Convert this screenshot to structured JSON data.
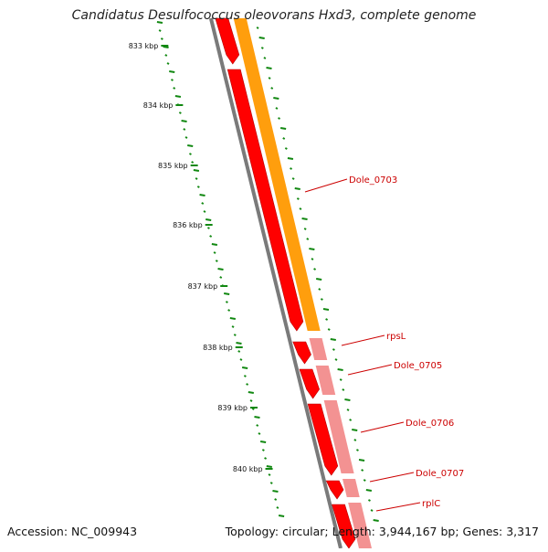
{
  "title": "Candidatus Desulfococcus oleovorans Hxd3, complete genome",
  "footer": {
    "accession": "Accession: NC_009943",
    "summary": "Topology: circular; Length: 3,944,167 bp; Genes: 3,317"
  },
  "ticks": [
    {
      "label": "833 kbp",
      "kbp": 833
    },
    {
      "label": "834 kbp",
      "kbp": 834
    },
    {
      "label": "835 kbp",
      "kbp": 835
    },
    {
      "label": "836 kbp",
      "kbp": 836
    },
    {
      "label": "837 kbp",
      "kbp": 837
    },
    {
      "label": "838 kbp",
      "kbp": 838
    },
    {
      "label": "839 kbp",
      "kbp": 839
    },
    {
      "label": "840 kbp",
      "kbp": 840
    }
  ],
  "genes": [
    {
      "name": "Dole_0703",
      "color": "#ff9900"
    },
    {
      "name": "rpsL",
      "color": "#f28c8c"
    },
    {
      "name": "Dole_0705",
      "color": "#f28c8c"
    },
    {
      "name": "Dole_0706",
      "color": "#f28c8c"
    },
    {
      "name": "Dole_0707",
      "color": "#f28c8c"
    },
    {
      "name": "rplC",
      "color": "#f28c8c"
    }
  ],
  "colors": {
    "backbone": "#7a7a7a",
    "cds": "#ff0000",
    "gene_orange": "#ff9900",
    "gene_pink": "#f28c8c",
    "gc_marks": "#118811"
  }
}
